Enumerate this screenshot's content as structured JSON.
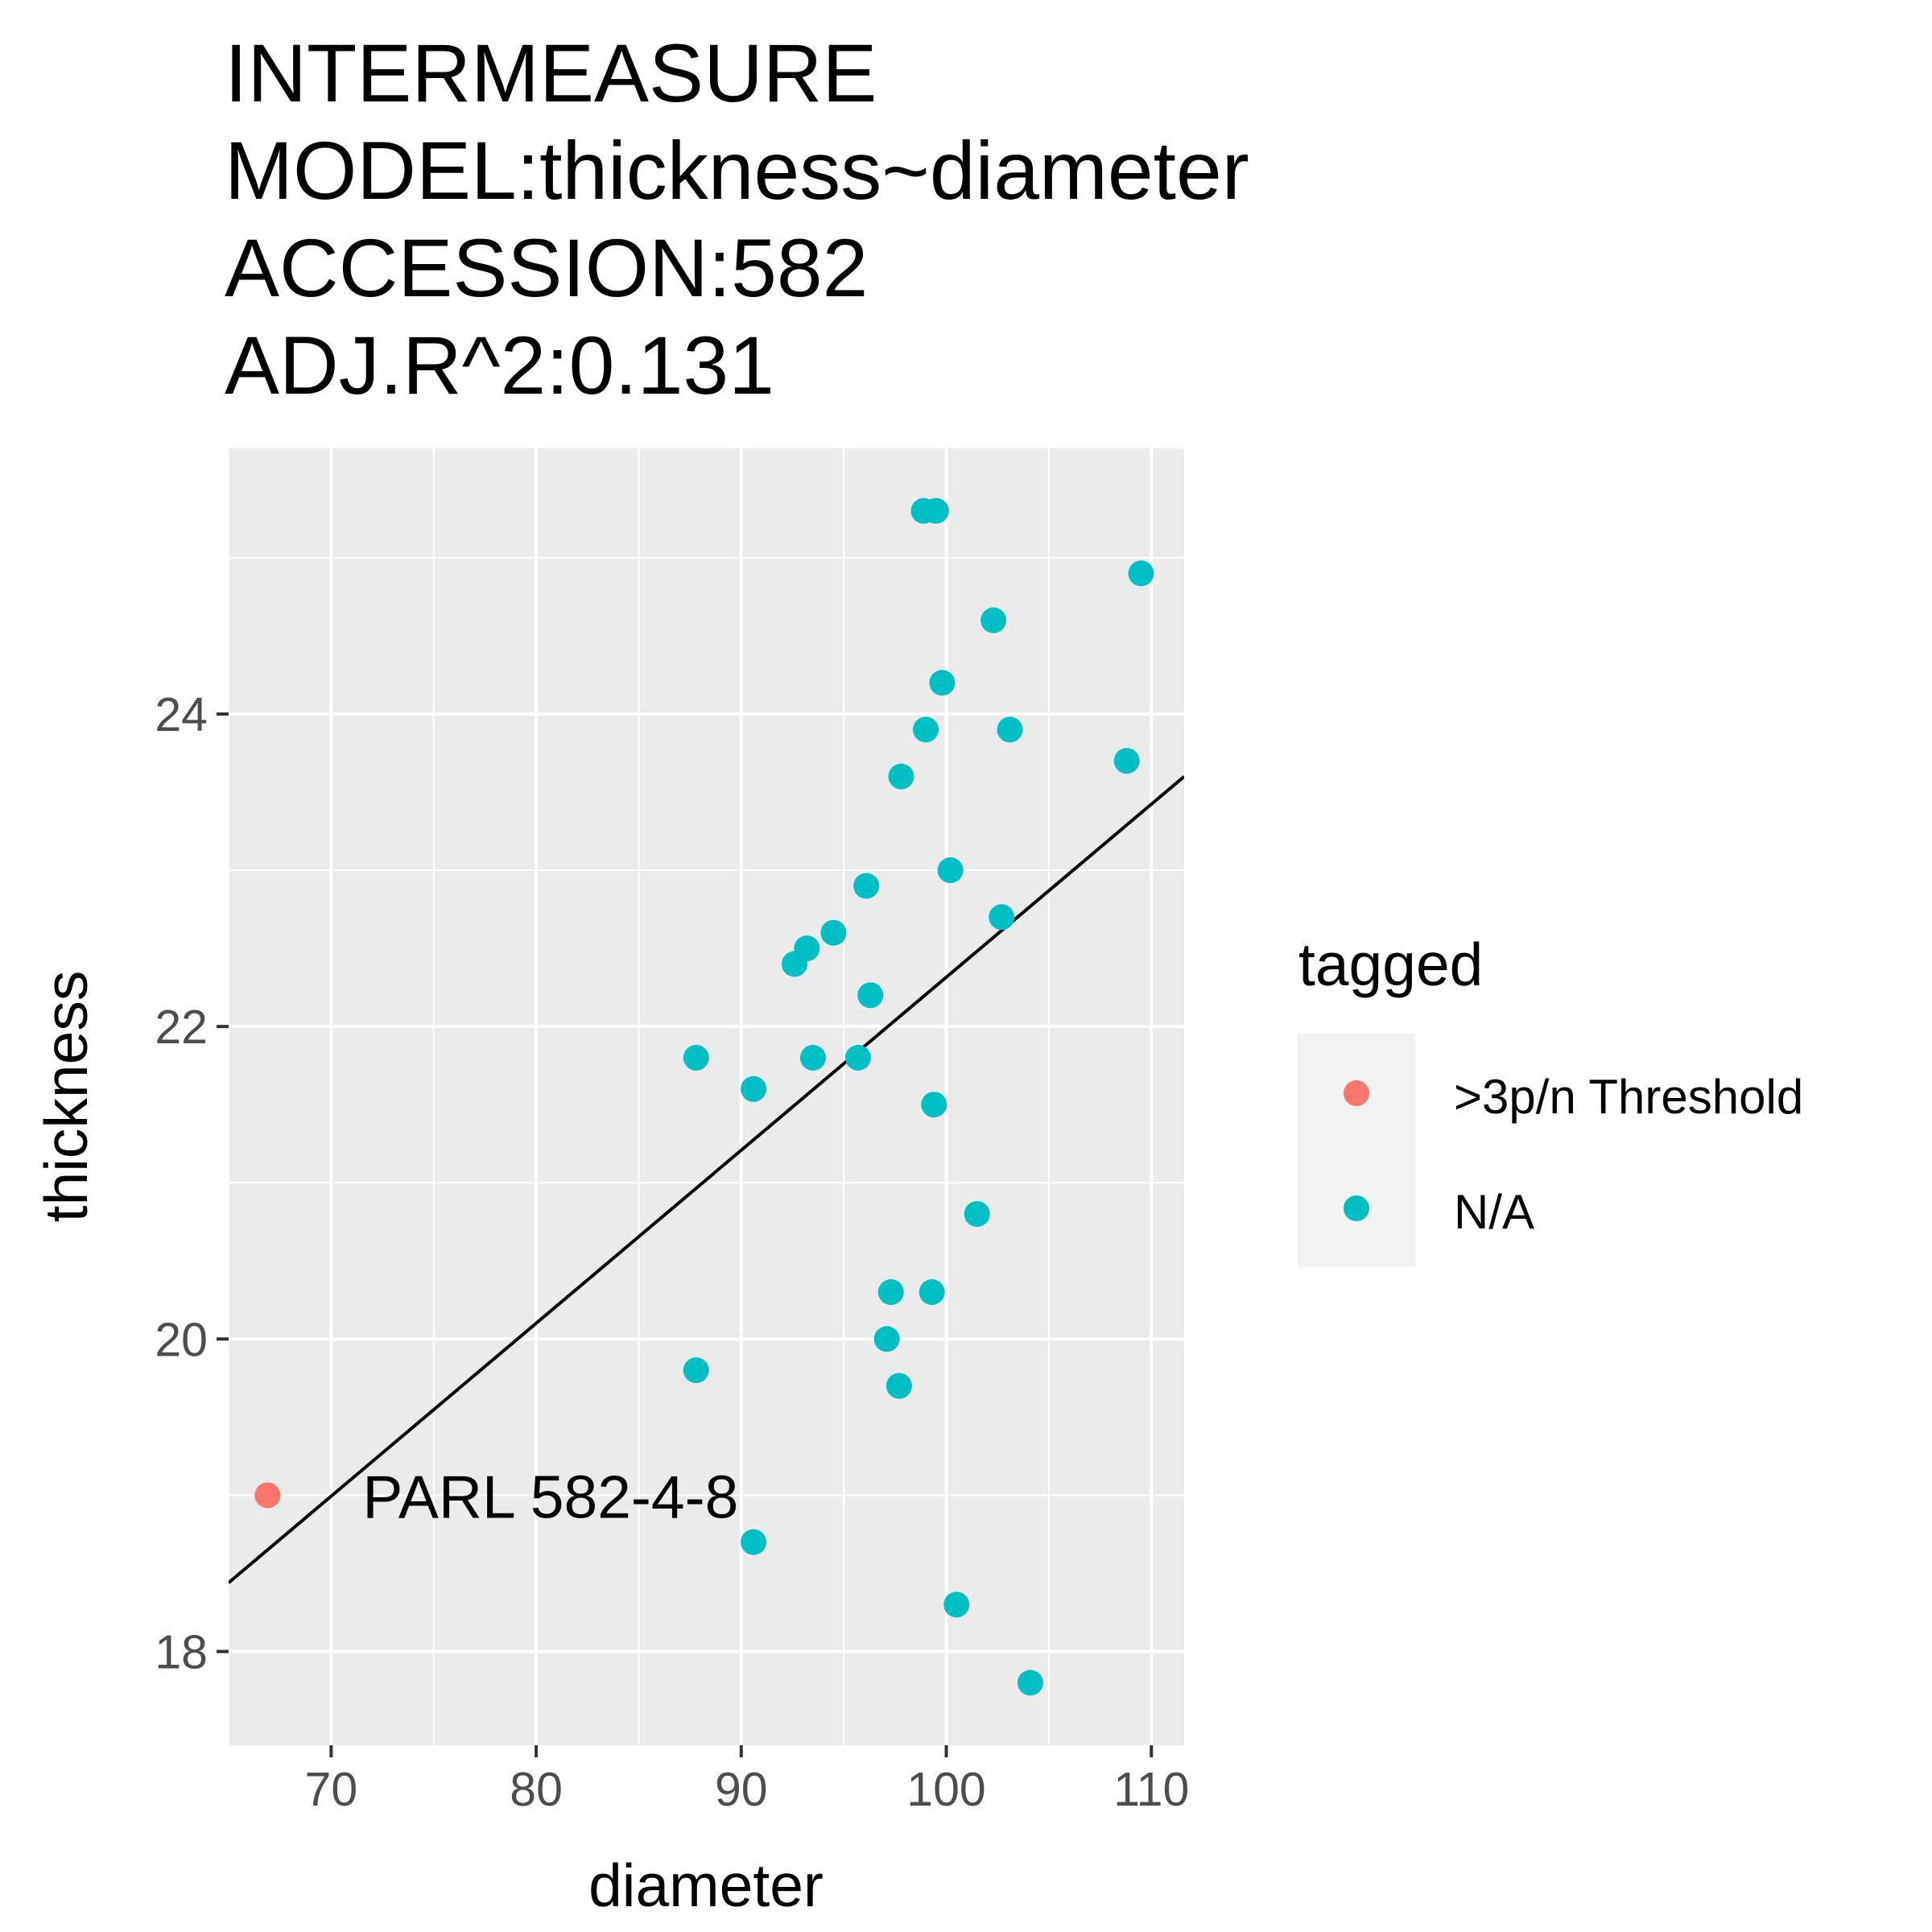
{
  "chart_data": {
    "type": "scatter",
    "title_lines": [
      "INTERMEASURE",
      "MODEL:thickness~diameter",
      "ACCESSION:582",
      "ADJ.R^2:0.131"
    ],
    "xlabel": "diameter",
    "ylabel": "thickness",
    "xlim": [
      65,
      111.6
    ],
    "ylim": [
      17.4,
      25.7
    ],
    "x_ticks": [
      70,
      80,
      90,
      100,
      110
    ],
    "x_tick_labels": [
      "70",
      "80",
      "90",
      "100",
      "110"
    ],
    "y_ticks": [
      18,
      20,
      22,
      24
    ],
    "y_tick_labels": [
      "18",
      "20",
      "22",
      "24"
    ],
    "grid": true,
    "panel_background": "#ebebeb",
    "legend": {
      "title": "tagged",
      "placement": "right",
      "entries": [
        {
          "label": ">3p/n Threshold",
          "color": "#f8766d"
        },
        {
          "label": "N/A",
          "color": "#00bfc4"
        }
      ]
    },
    "regression_line": {
      "x": [
        65,
        111.6
      ],
      "y": [
        18.44,
        23.6
      ],
      "color": "#000000"
    },
    "series": [
      {
        "name": ">3p/n Threshold",
        "color": "#f8766d",
        "points": [
          {
            "x": 66.9,
            "y": 19.0
          }
        ]
      },
      {
        "name": "N/A",
        "color": "#00bfc4",
        "points": [
          {
            "x": 98.9,
            "y": 25.3
          },
          {
            "x": 99.5,
            "y": 25.3
          },
          {
            "x": 109.5,
            "y": 24.9
          },
          {
            "x": 102.3,
            "y": 24.6
          },
          {
            "x": 99.8,
            "y": 24.2
          },
          {
            "x": 99.0,
            "y": 23.9
          },
          {
            "x": 103.1,
            "y": 23.9
          },
          {
            "x": 108.8,
            "y": 23.7
          },
          {
            "x": 97.8,
            "y": 23.6
          },
          {
            "x": 100.2,
            "y": 23.0
          },
          {
            "x": 96.1,
            "y": 22.9
          },
          {
            "x": 102.7,
            "y": 22.7
          },
          {
            "x": 94.5,
            "y": 22.6
          },
          {
            "x": 93.2,
            "y": 22.5
          },
          {
            "x": 92.6,
            "y": 22.4
          },
          {
            "x": 96.3,
            "y": 22.2
          },
          {
            "x": 87.8,
            "y": 21.8
          },
          {
            "x": 93.5,
            "y": 21.8
          },
          {
            "x": 95.7,
            "y": 21.8
          },
          {
            "x": 90.6,
            "y": 21.6
          },
          {
            "x": 99.4,
            "y": 21.5
          },
          {
            "x": 101.5,
            "y": 20.8
          },
          {
            "x": 97.3,
            "y": 20.3
          },
          {
            "x": 99.3,
            "y": 20.3
          },
          {
            "x": 97.1,
            "y": 20.0
          },
          {
            "x": 87.8,
            "y": 19.8
          },
          {
            "x": 97.7,
            "y": 19.7
          },
          {
            "x": 90.6,
            "y": 18.7
          },
          {
            "x": 100.5,
            "y": 18.3
          },
          {
            "x": 104.1,
            "y": 17.8
          }
        ]
      }
    ],
    "annotations": [
      {
        "text": "PARL 582-4-8",
        "x": 66.9,
        "y": 19.0
      }
    ]
  }
}
